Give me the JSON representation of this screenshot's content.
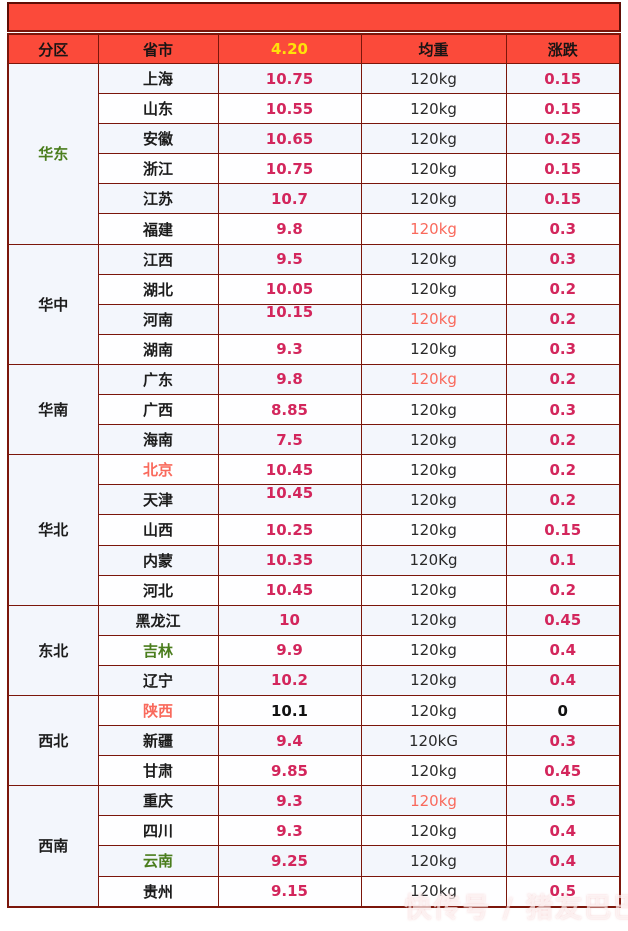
{
  "colors": {
    "banner_bg": "#fb4a3a",
    "header_bg": "#fb4a3a",
    "header_date_text": "#ffe10a",
    "table_border": "#7b160b",
    "price_text": "#d3265c",
    "highlight_red_text": "#f9695c",
    "green_text": "#4a7d1d",
    "row_light_bg": "#f3f6fc",
    "row_white_bg": "#fefeff"
  },
  "watermark": {
    "text": "快传号 / 猪友巴巴"
  },
  "chart_data": {
    "type": "table",
    "title": "",
    "columns": [
      "分区",
      "省市",
      "4.20",
      "均重",
      "涨跌"
    ],
    "date_column_index": 2,
    "regions": [
      {
        "name": "华东",
        "name_style": "green",
        "rows": [
          {
            "province": "上海",
            "price": "10.75",
            "weight": "120kg",
            "change": "0.15"
          },
          {
            "province": "山东",
            "price": "10.55",
            "weight": "120kg",
            "change": "0.15"
          },
          {
            "province": "安徽",
            "price": "10.65",
            "weight": "120kg",
            "change": "0.25"
          },
          {
            "province": "浙江",
            "price": "10.75",
            "weight": "120kg",
            "change": "0.15"
          },
          {
            "province": "江苏",
            "price": "10.7",
            "weight": "120kg",
            "change": "0.15"
          },
          {
            "province": "福建",
            "price": "9.8",
            "weight": "120kg",
            "weight_style": "red",
            "change": "0.3"
          }
        ]
      },
      {
        "name": "华中",
        "rows": [
          {
            "province": "江西",
            "price": "9.5",
            "weight": "120kg",
            "change": "0.3"
          },
          {
            "province": "湖北",
            "price": "10.05",
            "weight": "120kg",
            "change": "0.2"
          },
          {
            "province": "河南",
            "price": "10.15",
            "price_raised": true,
            "weight": "120kg",
            "weight_style": "red",
            "change": "0.2"
          },
          {
            "province": "湖南",
            "price": "9.3",
            "weight": "120kg",
            "change": "0.3"
          }
        ]
      },
      {
        "name": "华南",
        "rows": [
          {
            "province": "广东",
            "price": "9.8",
            "weight": "120kg",
            "weight_style": "red",
            "change": "0.2"
          },
          {
            "province": "广西",
            "price": "8.85",
            "weight": "120kg",
            "change": "0.3"
          },
          {
            "province": "海南",
            "price": "7.5",
            "weight": "120kg",
            "change": "0.2"
          }
        ]
      },
      {
        "name": "华北",
        "rows": [
          {
            "province": "北京",
            "province_style": "red",
            "price": "10.45",
            "weight": "120kg",
            "change": "0.2"
          },
          {
            "province": "天津",
            "price": "10.45",
            "price_raised": true,
            "weight": "120kg",
            "change": "0.2"
          },
          {
            "province": "山西",
            "price": "10.25",
            "weight": "120kg",
            "change": "0.15"
          },
          {
            "province": "内蒙",
            "price": "10.35",
            "weight": "120Kg",
            "change": "0.1"
          },
          {
            "province": "河北",
            "price": "10.45",
            "weight": "120kg",
            "change": "0.2"
          }
        ]
      },
      {
        "name": "东北",
        "rows": [
          {
            "province": "黑龙江",
            "price": "10",
            "weight": "120kg",
            "change": "0.45"
          },
          {
            "province": "吉林",
            "province_style": "green",
            "price": "9.9",
            "weight": "120kg",
            "change": "0.4"
          },
          {
            "province": "辽宁",
            "price": "10.2",
            "weight": "120kg",
            "change": "0.4"
          }
        ]
      },
      {
        "name": "西北",
        "rows": [
          {
            "province": "陕西",
            "province_style": "red",
            "price": "10.1",
            "price_style": "black",
            "weight": "120kg",
            "change": "0",
            "change_style": "black"
          },
          {
            "province": "新疆",
            "price": "9.4",
            "weight": "120kG",
            "change": "0.3"
          },
          {
            "province": "甘肃",
            "price": "9.85",
            "weight": "120kg",
            "change": "0.45"
          }
        ]
      },
      {
        "name": "西南",
        "rows": [
          {
            "province": "重庆",
            "price": "9.3",
            "weight": "120kg",
            "weight_style": "red",
            "change": "0.5"
          },
          {
            "province": "四川",
            "price": "9.3",
            "weight": "120kg",
            "change": "0.4"
          },
          {
            "province": "云南",
            "province_style": "green",
            "price": "9.25",
            "weight": "120kg",
            "change": "0.4"
          },
          {
            "province": "贵州",
            "price": "9.15",
            "weight": "120kg",
            "change": "0.5"
          }
        ]
      }
    ]
  }
}
